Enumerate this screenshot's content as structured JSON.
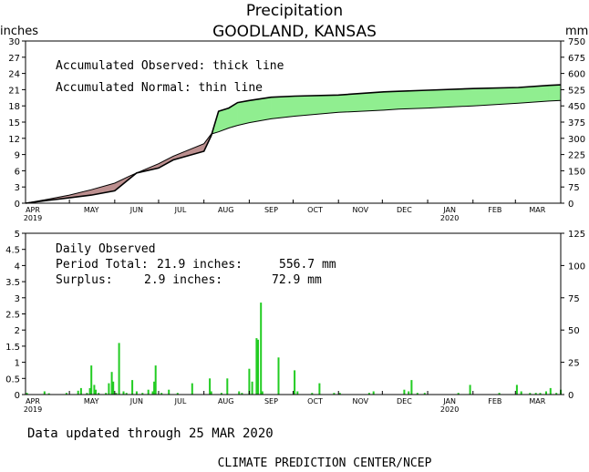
{
  "title": "Precipitation",
  "subtitle": "GOODLAND, KANSAS",
  "footer_updated": "Data updated through 25 MAR 2020",
  "footer_credit": "CLIMATE PREDICTION CENTER/NCEP",
  "colors": {
    "surplus": "#90ee90",
    "deficit": "#bc8f8f",
    "bars": "#22cc22",
    "line": "#000000"
  },
  "chart_data": [
    {
      "type": "area",
      "ylabel_left": "inches",
      "ylabel_right": "mm",
      "ylim": [
        0,
        30
      ],
      "yticks_left": [
        "0",
        "3",
        "6",
        "9",
        "12",
        "15",
        "18",
        "21",
        "24",
        "27",
        "30"
      ],
      "yticks_right": [
        "0",
        "75",
        "150",
        "225",
        "300",
        "375",
        "450",
        "525",
        "600",
        "675",
        "750"
      ],
      "x_months": [
        "APR",
        "MAY",
        "JUN",
        "JUL",
        "AUG",
        "SEP",
        "OCT",
        "NOV",
        "DEC",
        "JAN",
        "FEB",
        "MAR"
      ],
      "x_years": [
        {
          "month": "APR",
          "year": "2019"
        },
        {
          "month": "JAN",
          "year": "2020"
        }
      ],
      "legend": [
        "Accumulated Observed: thick line",
        "Accumulated Normal: thin line"
      ],
      "x_days_since_apr1": [
        0,
        15,
        30,
        45,
        61,
        71,
        76,
        91,
        101,
        122,
        127,
        132,
        139,
        145,
        153,
        168,
        184,
        214,
        245,
        255,
        275,
        306,
        337,
        366,
        358
      ],
      "observed": [
        0,
        0.5,
        1.0,
        1.5,
        2.3,
        4.5,
        5.6,
        6.5,
        8.0,
        9.6,
        12.5,
        17.0,
        17.6,
        18.6,
        19.0,
        19.6,
        19.8,
        20.0,
        20.6,
        20.7,
        20.9,
        21.2,
        21.4,
        21.9,
        21.8
      ],
      "normal": [
        0,
        0.7,
        1.5,
        2.5,
        3.7,
        5.0,
        5.6,
        7.3,
        8.7,
        11.0,
        12.8,
        13.2,
        13.9,
        14.4,
        14.9,
        15.6,
        16.1,
        16.8,
        17.2,
        17.4,
        17.6,
        18.0,
        18.5,
        19.0,
        18.9
      ]
    },
    {
      "type": "bar",
      "ylim": [
        0,
        5
      ],
      "yticks_left": [
        "0",
        "0.5",
        "1",
        "1.5",
        "2",
        "2.5",
        "3",
        "3.5",
        "4",
        "4.5",
        "5"
      ],
      "yticks_right": [
        "0",
        "25",
        "50",
        "75",
        "100",
        "125"
      ],
      "legend_title": "Daily Observed",
      "period_total_label": "Period Total:",
      "period_total_inches": "21.9 inches:",
      "period_total_mm": "556.7 mm",
      "surplus_label": "Surplus:",
      "surplus_inches": "2.9 inches:",
      "surplus_mm": "72.9 mm",
      "x_months": [
        "APR",
        "MAY",
        "JUN",
        "JUL",
        "AUG",
        "SEP",
        "OCT",
        "NOV",
        "DEC",
        "JAN",
        "FEB",
        "MAR"
      ],
      "x_years": [
        {
          "month": "APR",
          "year": "2019"
        },
        {
          "month": "JAN",
          "year": "2020"
        }
      ],
      "bars": [
        {
          "day": 1,
          "value": 0.05
        },
        {
          "day": 13,
          "value": 0.1
        },
        {
          "day": 16,
          "value": 0.04
        },
        {
          "day": 28,
          "value": 0.05
        },
        {
          "day": 36,
          "value": 0.12
        },
        {
          "day": 38,
          "value": 0.2
        },
        {
          "day": 42,
          "value": 0.05
        },
        {
          "day": 44,
          "value": 0.2
        },
        {
          "day": 45,
          "value": 0.9
        },
        {
          "day": 47,
          "value": 0.3
        },
        {
          "day": 48,
          "value": 0.15
        },
        {
          "day": 50,
          "value": 0.05
        },
        {
          "day": 55,
          "value": 0.05
        },
        {
          "day": 57,
          "value": 0.35
        },
        {
          "day": 59,
          "value": 0.7
        },
        {
          "day": 60,
          "value": 0.4
        },
        {
          "day": 62,
          "value": 0.05
        },
        {
          "day": 64,
          "value": 1.6
        },
        {
          "day": 67,
          "value": 0.1
        },
        {
          "day": 69,
          "value": 0.05
        },
        {
          "day": 73,
          "value": 0.45
        },
        {
          "day": 76,
          "value": 0.1
        },
        {
          "day": 80,
          "value": 0.05
        },
        {
          "day": 84,
          "value": 0.15
        },
        {
          "day": 87,
          "value": 0.1
        },
        {
          "day": 88,
          "value": 0.4
        },
        {
          "day": 89,
          "value": 0.9
        },
        {
          "day": 93,
          "value": 0.05
        },
        {
          "day": 98,
          "value": 0.15
        },
        {
          "day": 104,
          "value": 0.05
        },
        {
          "day": 114,
          "value": 0.35
        },
        {
          "day": 126,
          "value": 0.5
        },
        {
          "day": 127,
          "value": 0.1
        },
        {
          "day": 134,
          "value": 0.05
        },
        {
          "day": 138,
          "value": 0.5
        },
        {
          "day": 146,
          "value": 0.1
        },
        {
          "day": 148,
          "value": 0.05
        },
        {
          "day": 153,
          "value": 0.8
        },
        {
          "day": 155,
          "value": 0.4
        },
        {
          "day": 158,
          "value": 1.75
        },
        {
          "day": 159,
          "value": 1.7
        },
        {
          "day": 161,
          "value": 2.85
        },
        {
          "day": 162,
          "value": 0.1
        },
        {
          "day": 173,
          "value": 1.15
        },
        {
          "day": 184,
          "value": 0.75
        },
        {
          "day": 186,
          "value": 0.1
        },
        {
          "day": 196,
          "value": 0.05
        },
        {
          "day": 201,
          "value": 0.35
        },
        {
          "day": 211,
          "value": 0.05
        },
        {
          "day": 215,
          "value": 0.05
        },
        {
          "day": 235,
          "value": 0.05
        },
        {
          "day": 238,
          "value": 0.1
        },
        {
          "day": 259,
          "value": 0.15
        },
        {
          "day": 262,
          "value": 0.1
        },
        {
          "day": 264,
          "value": 0.45
        },
        {
          "day": 268,
          "value": 0.05
        },
        {
          "day": 273,
          "value": 0.05
        },
        {
          "day": 296,
          "value": 0.05
        },
        {
          "day": 304,
          "value": 0.3
        },
        {
          "day": 324,
          "value": 0.05
        },
        {
          "day": 336,
          "value": 0.3
        },
        {
          "day": 339,
          "value": 0.1
        },
        {
          "day": 345,
          "value": 0.05
        },
        {
          "day": 349,
          "value": 0.05
        },
        {
          "day": 352,
          "value": 0.05
        },
        {
          "day": 356,
          "value": 0.1
        },
        {
          "day": 359,
          "value": 0.2
        },
        {
          "day": 363,
          "value": 0.05
        },
        {
          "day": 366,
          "value": 0.15
        }
      ]
    }
  ]
}
